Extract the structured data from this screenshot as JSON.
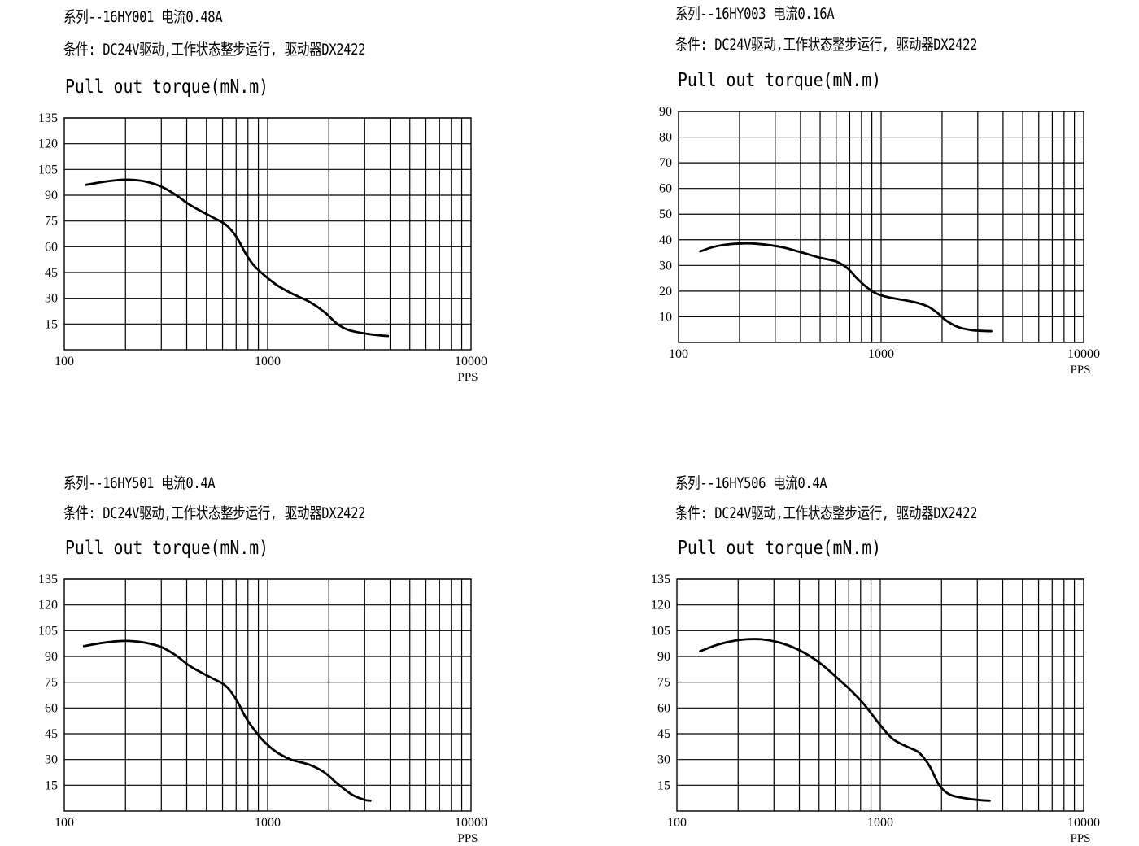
{
  "chart_data": [
    {
      "type": "line",
      "series_label": "系列--16HY001 电流0.48A",
      "conditions": "条件: DC24V驱动,工作状态整步运行, 驱动器DX2422",
      "title": "Pull out torque(mN.m)",
      "xlabel": "PPS",
      "xscale": "log",
      "xlim": [
        100,
        10000
      ],
      "xticks": [
        "100",
        "1000",
        "10000"
      ],
      "ylim": [
        0,
        135
      ],
      "yticks": [
        15,
        30,
        45,
        60,
        75,
        90,
        105,
        120,
        135
      ],
      "grid": true,
      "series": [
        {
          "x": [
            128,
            150,
            180,
            210,
            250,
            300,
            350,
            420,
            520,
            620,
            700,
            780,
            850,
            950,
            1100,
            1300,
            1600,
            1900,
            2200,
            2500,
            3000,
            3500,
            3900
          ],
          "y": [
            96,
            97.5,
            98.7,
            99,
            98,
            95,
            90.5,
            84,
            78,
            73,
            66,
            56,
            49.5,
            44,
            38,
            33,
            28,
            22,
            15,
            11.5,
            9.5,
            8.5,
            8
          ]
        }
      ]
    },
    {
      "type": "line",
      "series_label": "系列--16HY003 电流0.16A",
      "conditions": "条件: DC24V驱动,工作状态整步运行, 驱动器DX2422",
      "title": "Pull out torque(mN.m)",
      "xlabel": "PPS",
      "xscale": "log",
      "xlim": [
        100,
        10000
      ],
      "xticks": [
        "100",
        "1000",
        "10000"
      ],
      "ylim": [
        0,
        90
      ],
      "yticks": [
        10,
        20,
        30,
        40,
        50,
        60,
        70,
        80,
        90
      ],
      "grid": true,
      "series": [
        {
          "x": [
            128,
            150,
            180,
            220,
            270,
            330,
            400,
            500,
            600,
            680,
            760,
            850,
            950,
            1100,
            1300,
            1500,
            1700,
            1900,
            2100,
            2400,
            2800,
            3200,
            3500
          ],
          "y": [
            35.5,
            37.3,
            38.3,
            38.6,
            38.1,
            37,
            35.2,
            33,
            31.5,
            29,
            25,
            21.5,
            19,
            17.5,
            16.5,
            15.5,
            14,
            11.5,
            8.5,
            6,
            4.8,
            4.5,
            4.4
          ]
        }
      ]
    },
    {
      "type": "line",
      "series_label": "系列--16HY501 电流0.4A",
      "conditions": "条件: DC24V驱动,工作状态整步运行, 驱动器DX2422",
      "title": "Pull out torque(mN.m)",
      "xlabel": "PPS",
      "xscale": "log",
      "xlim": [
        100,
        10000
      ],
      "xticks": [
        "100",
        "1000",
        "10000"
      ],
      "ylim": [
        0,
        135
      ],
      "yticks": [
        15,
        30,
        45,
        60,
        75,
        90,
        105,
        120,
        135
      ],
      "grid": true,
      "series": [
        {
          "x": [
            125,
            150,
            180,
            210,
            250,
            300,
            350,
            420,
            520,
            620,
            700,
            780,
            850,
            950,
            1100,
            1300,
            1600,
            1900,
            2200,
            2600,
            3000,
            3200
          ],
          "y": [
            96,
            97.7,
            98.8,
            99,
            98,
            95.5,
            91,
            84,
            78,
            73,
            65,
            54.5,
            48,
            41,
            34.5,
            30,
            27,
            22.5,
            16,
            9.5,
            6.5,
            6
          ]
        }
      ]
    },
    {
      "type": "line",
      "series_label": "系列--16HY506 电流0.4A",
      "conditions": "条件: DC24V驱动,工作状态整步运行, 驱动器DX2422",
      "title": "Pull out torque(mN.m)",
      "xlabel": "PPS",
      "xscale": "log",
      "xlim": [
        100,
        10000
      ],
      "xticks": [
        "100",
        "1000",
        "10000"
      ],
      "ylim": [
        0,
        135
      ],
      "yticks": [
        15,
        30,
        45,
        60,
        75,
        90,
        105,
        120,
        135
      ],
      "grid": true,
      "series": [
        {
          "x": [
            130,
            155,
            185,
            220,
            260,
            310,
            370,
            440,
            520,
            620,
            720,
            820,
            900,
            1000,
            1150,
            1350,
            1550,
            1750,
            1950,
            2200,
            2600,
            3000,
            3450
          ],
          "y": [
            93,
            96.5,
            98.8,
            100,
            100,
            98.5,
            95.5,
            91,
            85,
            77,
            70,
            63,
            57,
            50,
            42,
            37.5,
            34,
            26,
            15,
            9.5,
            7.5,
            6.5,
            6
          ]
        }
      ]
    }
  ]
}
